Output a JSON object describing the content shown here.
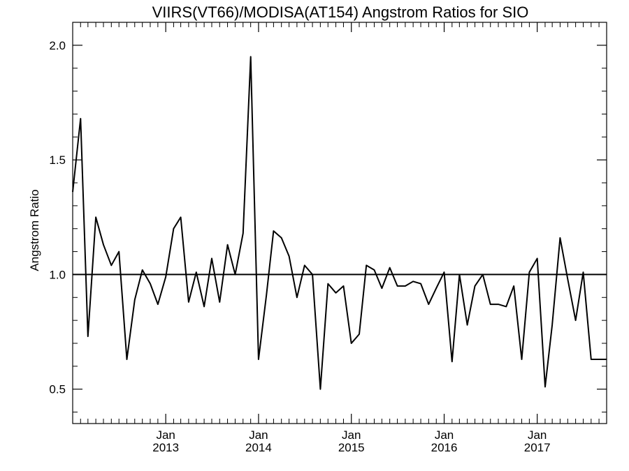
{
  "chart_data": {
    "type": "line",
    "title": "VIIRS(VT66)/MODISA(AT154)  Angstrom Ratios for SIO",
    "xlabel": "",
    "ylabel": "Angstrom Ratio",
    "xlim": [
      "2012-01-01",
      "2017-10-01"
    ],
    "ylim": [
      0.35,
      2.1
    ],
    "y_ticks": [
      {
        "value": 0.5,
        "label": "0.5"
      },
      {
        "value": 1.0,
        "label": "1.0"
      },
      {
        "value": 1.5,
        "label": "1.5"
      },
      {
        "value": 2.0,
        "label": "2.0"
      }
    ],
    "x_ticks": [
      {
        "date": "2013-01-01",
        "month": "Jan",
        "year": "2013"
      },
      {
        "date": "2014-01-01",
        "month": "Jan",
        "year": "2014"
      },
      {
        "date": "2015-01-01",
        "month": "Jan",
        "year": "2015"
      },
      {
        "date": "2016-01-01",
        "month": "Jan",
        "year": "2016"
      },
      {
        "date": "2017-01-01",
        "month": "Jan",
        "year": "2017"
      }
    ],
    "reference_line": 1.0,
    "grid": false,
    "series": [
      {
        "x": [
          "2012-01-01",
          "2012-02-01",
          "2012-03-01",
          "2012-04-01",
          "2012-05-01",
          "2012-06-01",
          "2012-07-01",
          "2012-08-01",
          "2012-09-01",
          "2012-10-01",
          "2012-11-01",
          "2012-12-01",
          "2013-01-01",
          "2013-02-01",
          "2013-03-01",
          "2013-04-01",
          "2013-05-01",
          "2013-06-01",
          "2013-07-01",
          "2013-08-01",
          "2013-09-01",
          "2013-10-01",
          "2013-11-01",
          "2013-12-01",
          "2014-01-01",
          "2014-02-01",
          "2014-03-01",
          "2014-04-01",
          "2014-05-01",
          "2014-06-01",
          "2014-07-01",
          "2014-08-01",
          "2014-09-01",
          "2014-10-01",
          "2014-11-01",
          "2014-12-01",
          "2015-01-01",
          "2015-02-01",
          "2015-03-01",
          "2015-04-01",
          "2015-05-01",
          "2015-06-01",
          "2015-07-01",
          "2015-08-01",
          "2015-09-01",
          "2015-10-01",
          "2015-11-01",
          "2015-12-01",
          "2016-01-01",
          "2016-02-01",
          "2016-03-01",
          "2016-04-01",
          "2016-05-01",
          "2016-06-01",
          "2016-07-01",
          "2016-08-01",
          "2016-09-01",
          "2016-10-01",
          "2016-11-01",
          "2016-12-01",
          "2017-01-01",
          "2017-02-01",
          "2017-03-01",
          "2017-04-01",
          "2017-05-01",
          "2017-06-01",
          "2017-07-01",
          "2017-08-01",
          "2017-09-01",
          "2017-10-01"
        ],
        "values": [
          1.36,
          1.68,
          0.73,
          1.25,
          1.13,
          1.04,
          1.1,
          0.63,
          0.89,
          1.02,
          0.96,
          0.87,
          0.99,
          1.2,
          1.25,
          0.88,
          1.01,
          0.86,
          1.07,
          0.88,
          1.13,
          1.0,
          1.18,
          1.95,
          0.63,
          0.91,
          1.19,
          1.16,
          1.08,
          0.9,
          1.04,
          1.0,
          0.5,
          0.96,
          0.92,
          0.95,
          0.7,
          0.74,
          1.04,
          1.02,
          0.94,
          1.03,
          0.95,
          0.95,
          0.97,
          0.96,
          0.87,
          0.94,
          1.01,
          0.62,
          1.0,
          0.78,
          0.95,
          1.0,
          0.87,
          0.87,
          0.86,
          0.95,
          0.63,
          1.01,
          1.07,
          0.51,
          0.78,
          1.16,
          0.98,
          0.8,
          1.01,
          0.63,
          0.63,
          0.63
        ]
      }
    ]
  }
}
